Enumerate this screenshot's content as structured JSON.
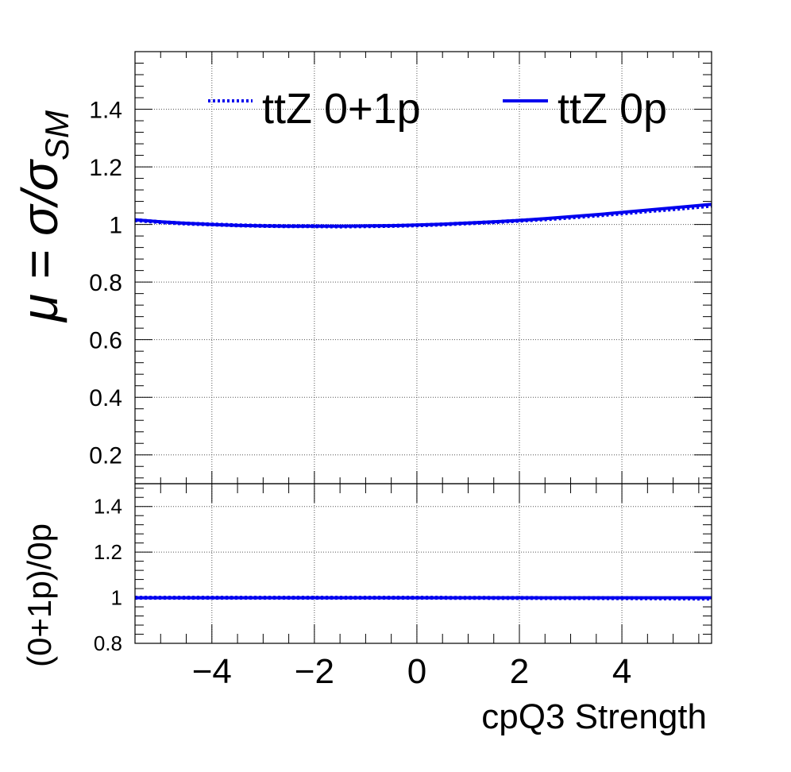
{
  "chart_data": {
    "type": "line",
    "xlabel": "cpQ3 Strength",
    "x_range": [
      -5.5,
      5.75
    ],
    "x_ticks": [
      "−4",
      "−2",
      "0",
      "2",
      "4"
    ],
    "top_panel": {
      "ylabel": "μ = σ/σ",
      "ylabel_sub": "SM",
      "ylim": [
        0.1,
        1.6
      ],
      "y_ticks": [
        "0.2",
        "0.4",
        "0.6",
        "0.8",
        "1",
        "1.2",
        "1.4"
      ],
      "grid": true,
      "legend_position": "top",
      "series": [
        {
          "name": "ttZ 0+1p",
          "style": "dotted",
          "color": "#0000ee",
          "x": [
            -5.5,
            -5,
            -4.5,
            -4,
            -3.5,
            -3,
            -2.5,
            -2,
            -1.5,
            -1,
            -0.5,
            0,
            0.5,
            1,
            1.5,
            2,
            2.5,
            3,
            3.5,
            4,
            4.5,
            5,
            5.5,
            5.75
          ],
          "y": [
            1.015,
            1.008,
            1.003,
            1.0,
            0.997,
            0.995,
            0.994,
            0.994,
            0.993,
            0.994,
            0.995,
            0.997,
            1.0,
            1.004,
            1.008,
            1.013,
            1.018,
            1.024,
            1.031,
            1.038,
            1.046,
            1.053,
            1.061,
            1.065
          ]
        },
        {
          "name": "ttZ 0p",
          "style": "solid",
          "color": "#0000ee",
          "x": [
            -5.5,
            -5,
            -4.5,
            -4,
            -3.5,
            -3,
            -2.5,
            -2,
            -1.5,
            -1,
            -0.5,
            0,
            0.5,
            1,
            1.5,
            2,
            2.5,
            3,
            3.5,
            4,
            4.5,
            5,
            5.5,
            5.75
          ],
          "y": [
            1.016,
            1.009,
            1.004,
            1.0,
            0.997,
            0.995,
            0.994,
            0.994,
            0.994,
            0.995,
            0.996,
            0.998,
            1.001,
            1.005,
            1.009,
            1.014,
            1.02,
            1.027,
            1.034,
            1.042,
            1.05,
            1.058,
            1.066,
            1.07
          ]
        }
      ]
    },
    "bottom_panel": {
      "ylabel": "(0+1p)/0p",
      "ylim": [
        0.8,
        1.5
      ],
      "y_ticks": [
        "0.8",
        "1",
        "1.2",
        "1.4"
      ],
      "grid": true,
      "series": [
        {
          "name": "ttZ 0+1p",
          "style": "dotted",
          "color": "#0000ee",
          "x": [
            -5.5,
            -4,
            -2,
            0,
            2,
            4,
            5,
            5.75
          ],
          "y": [
            1.0,
            1.0,
            1.0,
            1.0,
            0.999,
            0.998,
            0.997,
            0.996
          ]
        },
        {
          "name": "ttZ 0p",
          "style": "solid",
          "color": "#0000ee",
          "x": [
            -5.5,
            5.75
          ],
          "y": [
            1.0,
            1.0
          ]
        }
      ]
    }
  }
}
